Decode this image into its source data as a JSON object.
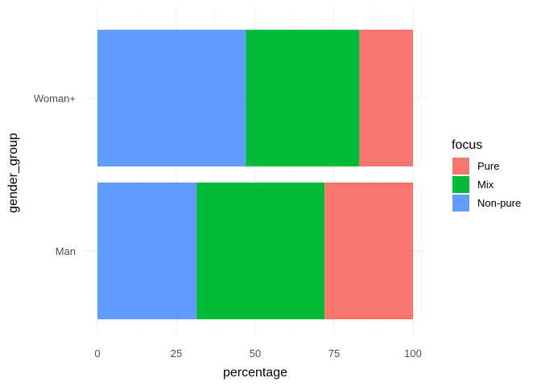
{
  "chart_data": {
    "type": "bar",
    "orientation": "horizontal",
    "stacked": true,
    "categories": [
      "Man",
      "Woman+"
    ],
    "series": [
      {
        "name": "Non-pure",
        "color": "#619CFF",
        "values": [
          31.5,
          47
        ]
      },
      {
        "name": "Mix",
        "color": "#00BA38",
        "values": [
          40.5,
          36
        ]
      },
      {
        "name": "Pure",
        "color": "#F8766D",
        "values": [
          28,
          17
        ]
      }
    ],
    "xlabel": "percentage",
    "ylabel": "gender_group",
    "xlim": [
      0,
      100
    ],
    "xticks": [
      "0",
      "25",
      "50",
      "75",
      "100"
    ],
    "grid": true,
    "legend": {
      "title": "focus",
      "position": "right",
      "items": [
        {
          "label": "Pure",
          "color": "#F8766D"
        },
        {
          "label": "Mix",
          "color": "#00BA38"
        },
        {
          "label": "Non-pure",
          "color": "#619CFF"
        }
      ]
    }
  }
}
